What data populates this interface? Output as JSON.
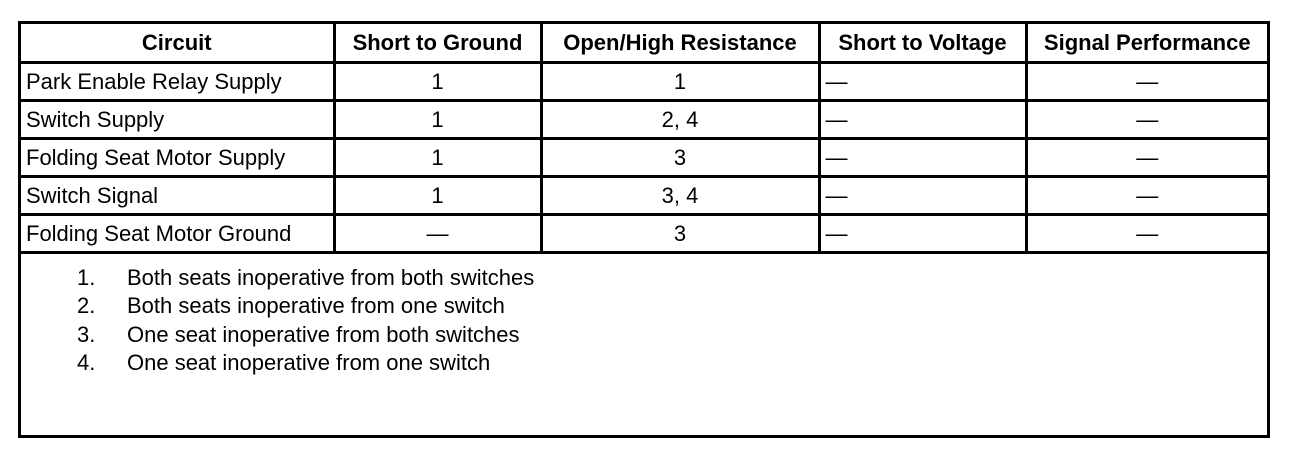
{
  "table": {
    "headers": [
      "Circuit",
      "Short to Ground",
      "Open/High Resistance",
      "Short to Voltage",
      "Signal Performance"
    ],
    "rows": [
      {
        "circuit": "Park Enable Relay Supply",
        "short_to_ground": "1",
        "open_high_resistance": "1",
        "short_to_voltage": "—",
        "signal_performance": "—"
      },
      {
        "circuit": "Switch Supply",
        "short_to_ground": "1",
        "open_high_resistance": "2, 4",
        "short_to_voltage": "—",
        "signal_performance": "—"
      },
      {
        "circuit": "Folding Seat Motor Supply",
        "short_to_ground": "1",
        "open_high_resistance": "3",
        "short_to_voltage": "—",
        "signal_performance": "—"
      },
      {
        "circuit": "Switch Signal",
        "short_to_ground": "1",
        "open_high_resistance": "3, 4",
        "short_to_voltage": "—",
        "signal_performance": "—"
      },
      {
        "circuit": "Folding Seat Motor Ground",
        "short_to_ground": "—",
        "open_high_resistance": "3",
        "short_to_voltage": "—",
        "signal_performance": "—"
      }
    ]
  },
  "notes": [
    {
      "num": "1.",
      "text": "Both seats inoperative from both switches"
    },
    {
      "num": "2.",
      "text": "Both seats inoperative from one switch"
    },
    {
      "num": "3.",
      "text": "One seat inoperative from both switches"
    },
    {
      "num": "4.",
      "text": "One seat inoperative from one switch"
    }
  ]
}
